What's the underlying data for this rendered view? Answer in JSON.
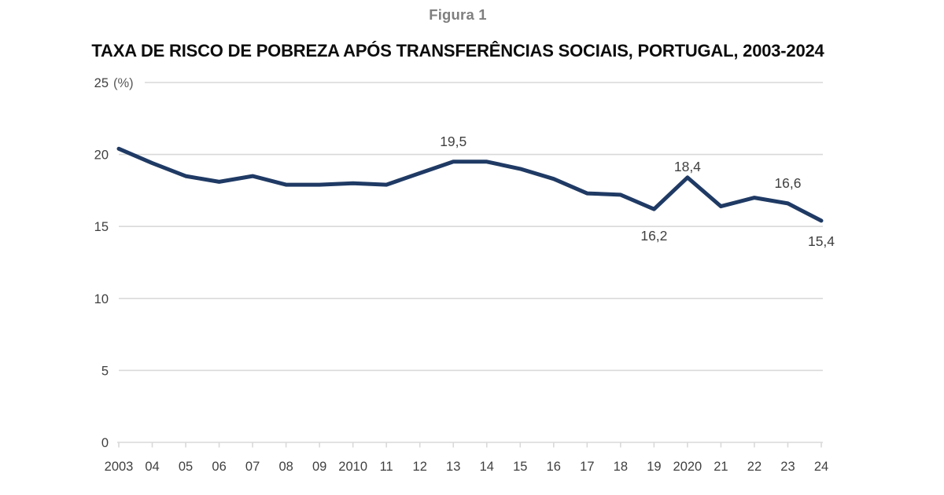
{
  "figure_label": "Figura 1",
  "chart_title": "TAXA DE RISCO DE POBREZA APÓS TRANSFERÊNCIAS SOCIAIS, PORTUGAL, 2003-2024",
  "chart_data": {
    "type": "line",
    "title": "TAXA DE RISCO DE POBREZA APÓS TRANSFERÊNCIAS SOCIAIS, PORTUGAL, 2003-2024",
    "ylabel": "(%)",
    "xlabel": "",
    "categories": [
      "2003",
      "04",
      "05",
      "06",
      "07",
      "08",
      "09",
      "2010",
      "11",
      "12",
      "13",
      "14",
      "15",
      "16",
      "17",
      "18",
      "19",
      "2020",
      "21",
      "22",
      "23",
      "24"
    ],
    "values": [
      20.4,
      19.4,
      18.5,
      18.1,
      18.5,
      17.9,
      17.9,
      18.0,
      17.9,
      18.7,
      19.5,
      19.5,
      19.0,
      18.3,
      17.3,
      17.2,
      16.2,
      18.4,
      16.4,
      17.0,
      16.6,
      15.4
    ],
    "ylim": [
      0,
      25
    ],
    "y_ticks": [
      0,
      5,
      10,
      15,
      20,
      25
    ],
    "grid": true,
    "legend": "none",
    "annotations": [
      {
        "index": 10,
        "label": "19,5",
        "dy": -20
      },
      {
        "index": 16,
        "label": "16,2",
        "dy": 40
      },
      {
        "index": 17,
        "label": "18,4",
        "dy": -8
      },
      {
        "index": 20,
        "label": "16,6",
        "dy": -20
      },
      {
        "index": 21,
        "label": "15,4",
        "dy": 32
      }
    ],
    "colors": {
      "line": "#1f3a64",
      "grid": "#d9d9d9",
      "axis_text": "#404040",
      "data_label_text": "#404040",
      "unit_label_text": "#595959",
      "figure_label_text": "#7f7f7f",
      "title_text": "#0d0d0d",
      "background": "#ffffff"
    }
  }
}
